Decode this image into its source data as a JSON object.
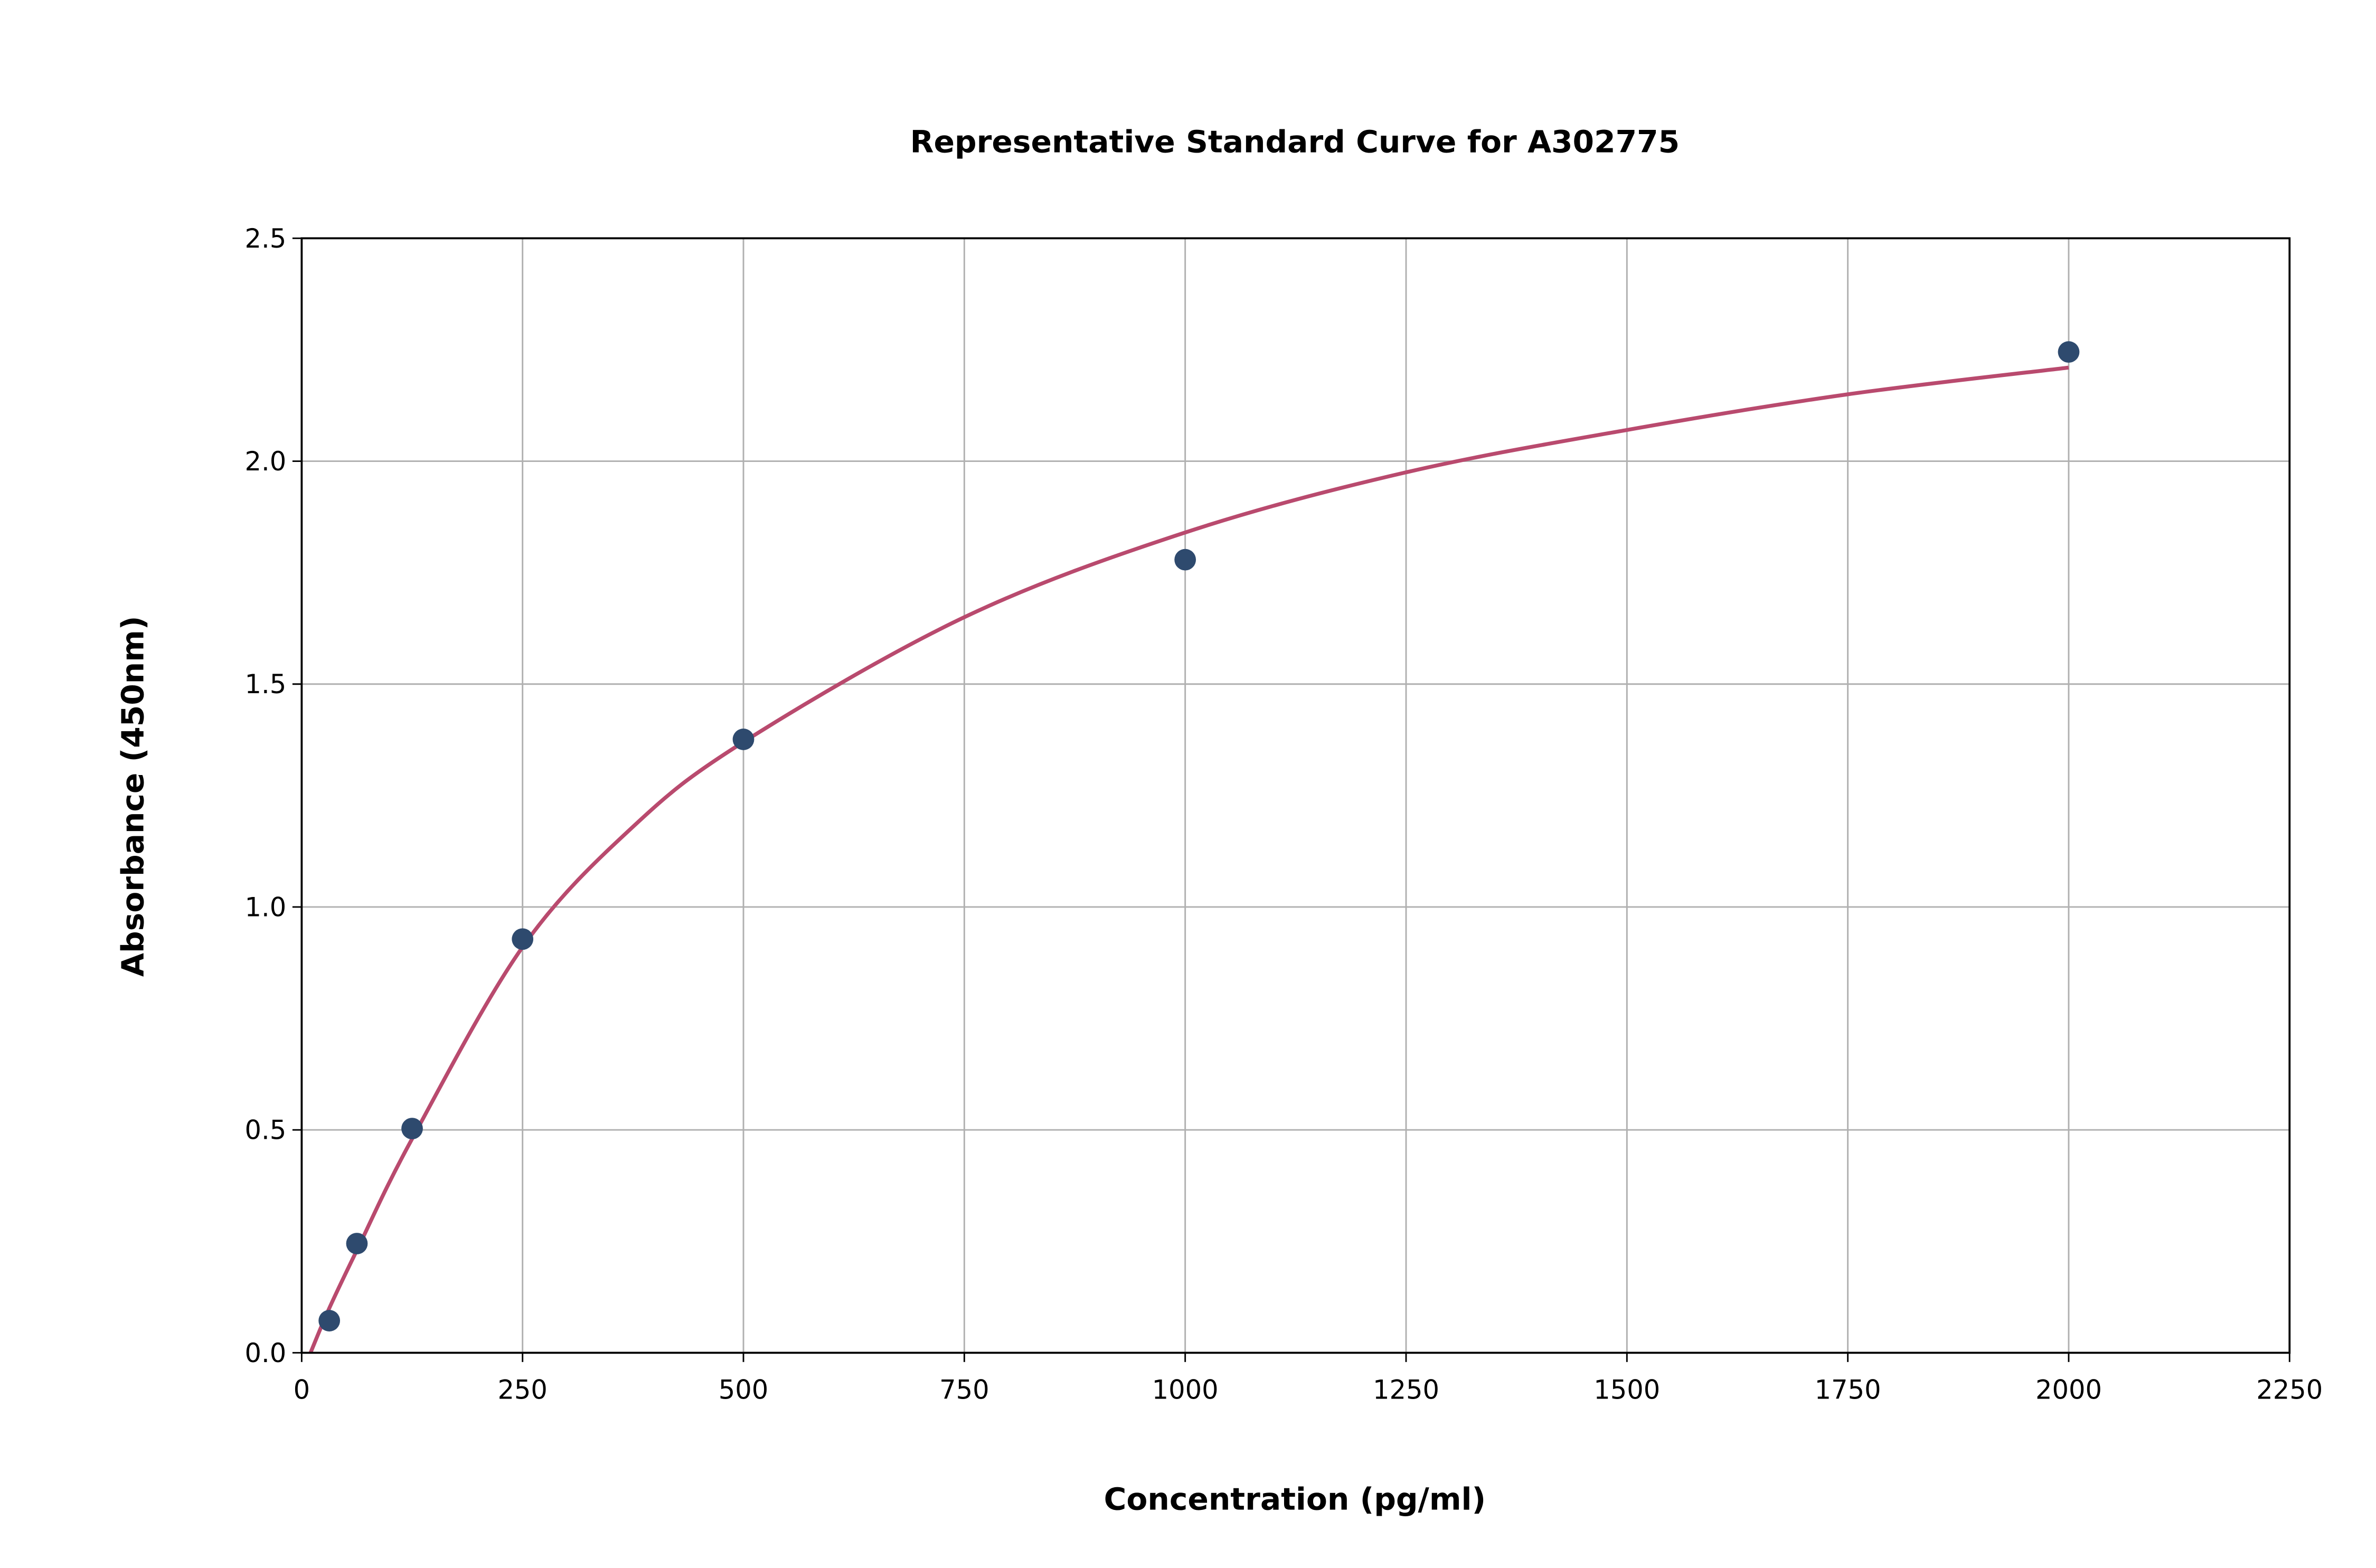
{
  "chart_data": {
    "type": "scatter",
    "title": "Representative Standard Curve for A302775",
    "xlabel": "Concentration (pg/ml)",
    "ylabel": "Absorbance (450nm)",
    "xlim": [
      0,
      2250
    ],
    "ylim": [
      0,
      2.5
    ],
    "xticks": [
      "0",
      "250",
      "500",
      "750",
      "1000",
      "1250",
      "1500",
      "1750",
      "2000",
      "2250"
    ],
    "yticks": [
      "0.0",
      "0.5",
      "1.0",
      "1.5",
      "2.0",
      "2.5"
    ],
    "grid": true,
    "points": {
      "x": [
        31.25,
        62.5,
        125,
        250,
        500,
        1000,
        2000
      ],
      "y": [
        0.072,
        0.245,
        0.503,
        0.928,
        1.376,
        1.779,
        2.245
      ],
      "color": "#2e4a6e"
    },
    "fit_curve": {
      "x": [
        10,
        31.25,
        62.5,
        125,
        250,
        375,
        500,
        750,
        1000,
        1250,
        1500,
        1750,
        2000
      ],
      "y": [
        0.0,
        0.1,
        0.23,
        0.48,
        0.91,
        1.18,
        1.37,
        1.65,
        1.84,
        1.975,
        2.07,
        2.15,
        2.21
      ],
      "color": "#b94a6e"
    }
  }
}
